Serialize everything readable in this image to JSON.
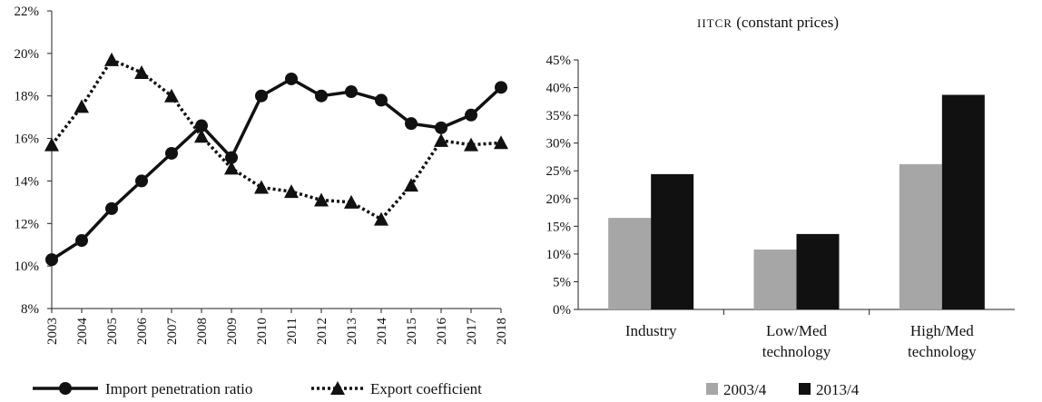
{
  "chart_data": [
    {
      "type": "line",
      "x": [
        "2003",
        "2004",
        "2005",
        "2006",
        "2007",
        "2008",
        "2009",
        "2010",
        "2011",
        "2012",
        "2013",
        "2014",
        "2015",
        "2016",
        "2017",
        "2018"
      ],
      "series": [
        {
          "name": "Import penetration ratio",
          "style": "solid",
          "marker": "circle",
          "values": [
            10.3,
            11.2,
            12.7,
            14.0,
            15.3,
            16.6,
            15.1,
            18.0,
            18.8,
            18.0,
            18.2,
            17.8,
            16.7,
            16.5,
            17.1,
            18.4
          ]
        },
        {
          "name": "Export coefficient",
          "style": "dotted",
          "marker": "triangle",
          "values": [
            15.7,
            17.5,
            19.7,
            19.1,
            18.0,
            16.1,
            14.6,
            13.7,
            13.5,
            13.1,
            13.0,
            12.2,
            13.8,
            15.9,
            15.7,
            15.8
          ]
        }
      ],
      "yticks": [
        "8%",
        "10%",
        "12%",
        "14%",
        "16%",
        "18%",
        "20%",
        "22%"
      ],
      "ylim": [
        8,
        22
      ],
      "legend_position": "bottom",
      "colors": {
        "line": "#111111"
      }
    },
    {
      "type": "bar",
      "title": "IITCR (constant prices)",
      "categories": [
        [
          "Industry"
        ],
        [
          "Low/Med",
          "technology"
        ],
        [
          "High/Med",
          "technology"
        ]
      ],
      "series": [
        {
          "name": "2003/4",
          "color": "#a6a6a6",
          "values": [
            16.5,
            10.8,
            26.2
          ]
        },
        {
          "name": "2013/4",
          "color": "#111111",
          "values": [
            24.4,
            13.6,
            38.7
          ]
        }
      ],
      "yticks": [
        "0%",
        "5%",
        "10%",
        "15%",
        "20%",
        "25%",
        "30%",
        "35%",
        "40%",
        "45%"
      ],
      "ylim": [
        0,
        45
      ],
      "legend_position": "bottom"
    }
  ]
}
